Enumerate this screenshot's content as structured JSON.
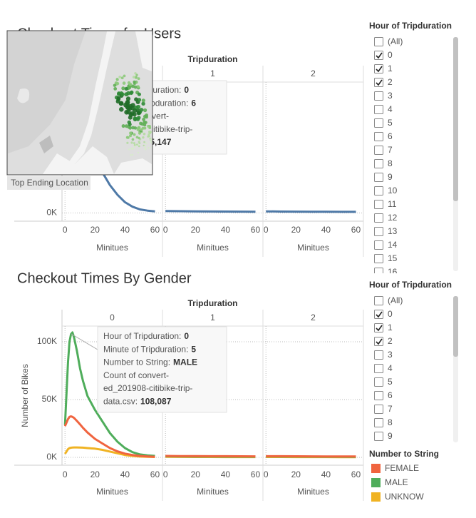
{
  "chart_data": [
    {
      "type": "line",
      "title": "Checkout Times for Users",
      "column_header": "Tripduration",
      "x_label": "Minitues",
      "xlim": [
        -2,
        65
      ],
      "xticks": [
        0,
        20,
        40,
        60
      ],
      "ylim": [
        -10000,
        160000
      ],
      "yticks": [
        {
          "value": 0,
          "label": "0K"
        }
      ],
      "panels": [
        {
          "label": "0",
          "x": [
            0,
            1,
            2,
            3,
            4,
            5,
            6,
            8,
            10,
            12,
            15,
            20,
            25,
            30,
            35,
            40,
            45,
            50,
            55,
            60
          ]
        },
        {
          "label": "1",
          "x": [
            0,
            10,
            20,
            30,
            40,
            50,
            60
          ]
        },
        {
          "label": "2",
          "x": [
            0,
            10,
            20,
            30,
            40,
            50,
            60
          ]
        }
      ],
      "series": [
        {
          "color": "#4e79a7",
          "panels": [
            [
              58000,
              90000,
              122000,
              143000,
              150300,
              151600,
              145147,
              132100,
              114000,
              99900,
              82500,
              64500,
              49500,
              34000,
              22200,
              13200,
              7700,
              4400,
              2900,
              2000
            ],
            [
              2500,
              2200,
              2000,
              1900,
              1800,
              1700,
              1600
            ],
            [
              2000,
              1800,
              1700,
              1600,
              1500,
              1400,
              1400
            ]
          ]
        }
      ],
      "tooltip": {
        "lines": [
          {
            "text": "Hour of Tripduration:",
            "bold": "0"
          },
          {
            "text": "Minute of Tripduration:",
            "bold": "6"
          },
          {
            "text": "Count of convert-"
          },
          {
            "text": "ed_201908-citibike-trip-"
          },
          {
            "text": "data.csv:",
            "bold": "145,147"
          }
        ]
      }
    },
    {
      "type": "line",
      "title": "Checkout Times By Gender",
      "column_header": "Tripduration",
      "x_label": "Minitues",
      "y_label": "Number of Bikes",
      "xlim": [
        -2,
        65
      ],
      "xticks": [
        0,
        20,
        40,
        60
      ],
      "ylim": [
        -6800,
        113600
      ],
      "yticks": [
        {
          "value": 0,
          "label": "0K"
        },
        {
          "value": 50000,
          "label": "50K"
        },
        {
          "value": 100000,
          "label": "100K"
        }
      ],
      "legend_title": "Number to String",
      "panels": [
        {
          "label": "0",
          "x": [
            0,
            1,
            2,
            3,
            4,
            5,
            6,
            8,
            10,
            12,
            15,
            20,
            25,
            30,
            35,
            40,
            45,
            50,
            55,
            60
          ]
        },
        {
          "label": "1",
          "x": [
            0,
            10,
            20,
            30,
            40,
            50,
            60
          ]
        },
        {
          "label": "2",
          "x": [
            0,
            10,
            20,
            30,
            40,
            50,
            60
          ]
        }
      ],
      "series": [
        {
          "name": "FEMALE",
          "color": "#f0643f",
          "panels": [
            [
              27000,
              30000,
              33000,
              35000,
              35500,
              35000,
              34200,
              31500,
              28500,
              25500,
              21500,
              16000,
              12000,
              8000,
              5200,
              3200,
              2000,
              1200,
              800,
              500
            ],
            [
              1200,
              1100,
              1050,
              1000,
              950,
              900,
              850
            ],
            [
              1000,
              950,
              900,
              850,
              800,
              780,
              750
            ]
          ]
        },
        {
          "name": "MALE",
          "color": "#4fad5b",
          "panels": [
            [
              28000,
              55000,
              82000,
              100000,
              106500,
              108087,
              104000,
              92000,
              77000,
              66000,
              53000,
              41000,
              31000,
              21000,
              13500,
              8000,
              4500,
              2500,
              1700,
              1200
            ],
            [
              900,
              800,
              700,
              650,
              600,
              580,
              560
            ],
            [
              800,
              700,
              650,
              600,
              560,
              520,
              500
            ]
          ]
        },
        {
          "name": "UNKNOW",
          "color": "#f0b323",
          "panels": [
            [
              3000,
              5000,
              7000,
              8000,
              8300,
              8500,
              8600,
              8600,
              8500,
              8400,
              8000,
              7500,
              6500,
              5000,
              3500,
              2000,
              1200,
              700,
              400,
              300
            ],
            [
              400,
              350,
              300,
              280,
              260,
              240,
              220
            ],
            [
              300,
              280,
              260,
              240,
              220,
              200,
              200
            ]
          ]
        }
      ],
      "tooltip": {
        "lines": [
          {
            "text": "Hour of Tripduration:",
            "bold": "0"
          },
          {
            "text": "Minute of Tripduration:",
            "bold": "5"
          },
          {
            "text": "Number to String:",
            "bold": "MALE"
          },
          {
            "text": "Count of convert-"
          },
          {
            "text": "ed_201908-citibike-trip-"
          },
          {
            "text": "data.csv:",
            "bold": "108,087"
          }
        ]
      }
    }
  ],
  "filters": [
    {
      "title": "Hour of Tripduration",
      "items": [
        {
          "label": "(All)",
          "checked": false
        },
        {
          "label": "0",
          "checked": true
        },
        {
          "label": "1",
          "checked": true
        },
        {
          "label": "2",
          "checked": true
        },
        {
          "label": "3",
          "checked": false
        },
        {
          "label": "4",
          "checked": false
        },
        {
          "label": "5",
          "checked": false
        },
        {
          "label": "6",
          "checked": false
        },
        {
          "label": "7",
          "checked": false
        },
        {
          "label": "8",
          "checked": false
        },
        {
          "label": "9",
          "checked": false
        },
        {
          "label": "10",
          "checked": false
        },
        {
          "label": "11",
          "checked": false
        },
        {
          "label": "12",
          "checked": false
        },
        {
          "label": "13",
          "checked": false
        },
        {
          "label": "14",
          "checked": false
        },
        {
          "label": "15",
          "checked": false
        },
        {
          "label": "16",
          "checked": false
        }
      ]
    },
    {
      "title": "Hour of Tripduration",
      "items": [
        {
          "label": "(All)",
          "checked": false
        },
        {
          "label": "0",
          "checked": true
        },
        {
          "label": "1",
          "checked": true
        },
        {
          "label": "2",
          "checked": true
        },
        {
          "label": "3",
          "checked": false
        },
        {
          "label": "4",
          "checked": false
        },
        {
          "label": "5",
          "checked": false
        },
        {
          "label": "6",
          "checked": false
        },
        {
          "label": "7",
          "checked": false
        },
        {
          "label": "8",
          "checked": false
        },
        {
          "label": "9",
          "checked": false
        }
      ]
    }
  ],
  "map": {
    "label": "Top Ending Location"
  }
}
